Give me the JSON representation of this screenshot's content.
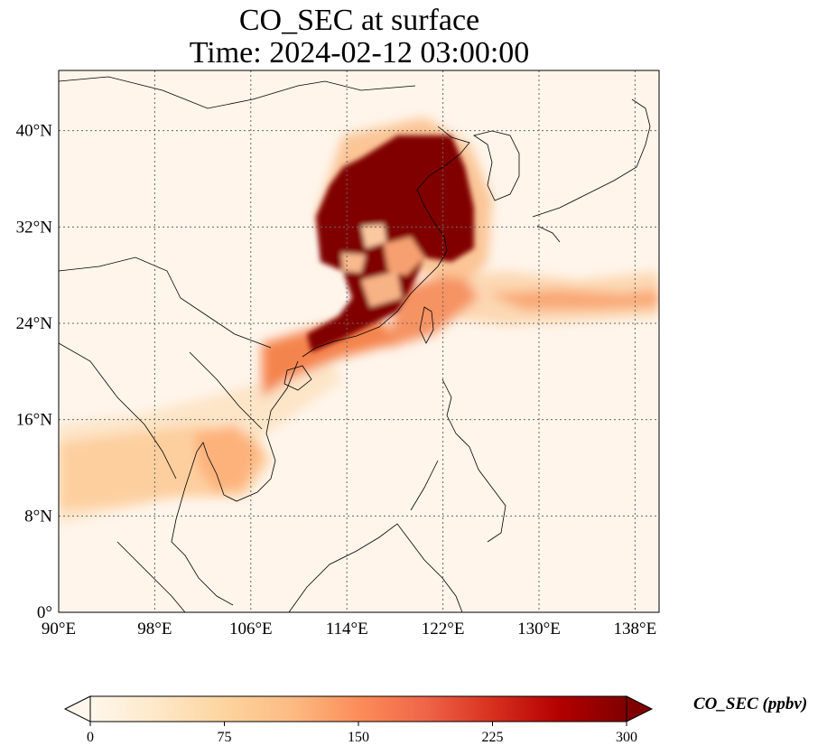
{
  "title": {
    "line1": "CO_SEC at surface",
    "line2": "Time: 2024-02-12 03:00:00"
  },
  "map": {
    "lon_ticks": [
      "90°E",
      "98°E",
      "106°E",
      "114°E",
      "122°E",
      "130°E",
      "138°E"
    ],
    "lon_values": [
      90,
      98,
      106,
      114,
      122,
      130,
      138
    ],
    "lat_ticks": [
      "0°",
      "8°N",
      "16°N",
      "24°N",
      "32°N",
      "40°N"
    ],
    "lat_values": [
      0,
      8,
      16,
      24,
      32,
      40
    ],
    "extent": {
      "lon_min": 90,
      "lon_max": 140,
      "lat_min": 0,
      "lat_max": 45
    },
    "gridlines": true,
    "colormap": "OrRd",
    "background_color": "#fff5eb"
  },
  "colorbar": {
    "label": "CO_SEC (ppbv)",
    "tick_labels": [
      "0",
      "75",
      "150",
      "225",
      "300"
    ],
    "tick_values": [
      0,
      75,
      150,
      225,
      300
    ],
    "min": 0,
    "max": 300,
    "extend": "both",
    "colors": [
      "#fff7ec",
      "#fee8c8",
      "#fdd49e",
      "#fdbb84",
      "#fc8d59",
      "#ef6548",
      "#d7301f",
      "#b30000",
      "#7f0000"
    ]
  }
}
